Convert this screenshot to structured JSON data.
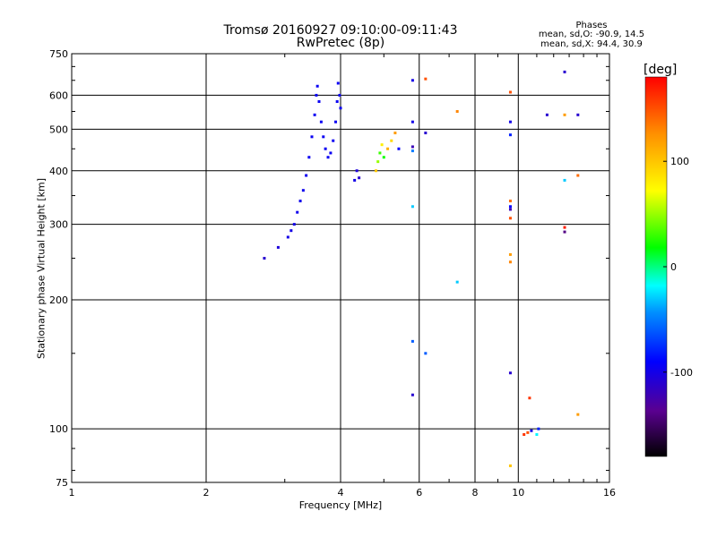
{
  "header": {
    "title": "Tromsø 20160927 09:10:00-09:11:43",
    "subtitle": "RwPretec (8p)",
    "phases_title": "Phases",
    "phases_o": "mean, sd,O: -90.9, 14.5",
    "phases_x": "mean, sd,X:  94.4, 30.9"
  },
  "chart_data": {
    "type": "scatter",
    "title": "Tromsø 20160927 09:10:00-09:11:43",
    "subtitle": "RwPretec (8p)",
    "xlabel": "Frequency [MHz]",
    "ylabel": "Stationary phase Virtual Height [km]",
    "x_scale": "log",
    "y_scale": "log",
    "xlim": [
      1,
      16
    ],
    "ylim": [
      75,
      750
    ],
    "x_ticks": [
      1,
      2,
      4,
      6,
      8,
      10,
      16
    ],
    "x_tick_labels": [
      "1",
      "2",
      "4",
      "6",
      "8",
      "10",
      "16"
    ],
    "y_ticks": [
      75,
      100,
      200,
      300,
      400,
      500,
      600,
      750
    ],
    "y_tick_labels": [
      "75",
      "100",
      "200",
      "300",
      "400",
      "500",
      "600",
      "750"
    ],
    "grid": true,
    "colorbar": {
      "label": "[deg]",
      "range": [
        -180,
        180
      ],
      "ticks": [
        100,
        0,
        -100
      ],
      "tick_labels": [
        "100",
        "0",
        "-100"
      ]
    },
    "points": [
      {
        "x": 2.7,
        "y": 250,
        "phase": -110
      },
      {
        "x": 2.9,
        "y": 265,
        "phase": -105
      },
      {
        "x": 3.05,
        "y": 280,
        "phase": -100
      },
      {
        "x": 3.1,
        "y": 290,
        "phase": -100
      },
      {
        "x": 3.15,
        "y": 300,
        "phase": -100
      },
      {
        "x": 3.2,
        "y": 320,
        "phase": -98
      },
      {
        "x": 3.25,
        "y": 340,
        "phase": -98
      },
      {
        "x": 3.3,
        "y": 360,
        "phase": -97
      },
      {
        "x": 3.35,
        "y": 390,
        "phase": -96
      },
      {
        "x": 3.4,
        "y": 430,
        "phase": -95
      },
      {
        "x": 3.45,
        "y": 480,
        "phase": -95
      },
      {
        "x": 3.5,
        "y": 540,
        "phase": -95
      },
      {
        "x": 3.53,
        "y": 600,
        "phase": -95
      },
      {
        "x": 3.55,
        "y": 630,
        "phase": -95
      },
      {
        "x": 3.58,
        "y": 580,
        "phase": -95
      },
      {
        "x": 3.62,
        "y": 520,
        "phase": -95
      },
      {
        "x": 3.66,
        "y": 480,
        "phase": -95
      },
      {
        "x": 3.7,
        "y": 450,
        "phase": -95
      },
      {
        "x": 3.75,
        "y": 430,
        "phase": -95
      },
      {
        "x": 3.8,
        "y": 440,
        "phase": -95
      },
      {
        "x": 3.85,
        "y": 470,
        "phase": -95
      },
      {
        "x": 3.9,
        "y": 520,
        "phase": -95
      },
      {
        "x": 3.93,
        "y": 580,
        "phase": -95
      },
      {
        "x": 3.95,
        "y": 640,
        "phase": -95
      },
      {
        "x": 3.98,
        "y": 600,
        "phase": -95
      },
      {
        "x": 4.0,
        "y": 560,
        "phase": -95
      },
      {
        "x": 4.3,
        "y": 380,
        "phase": -100
      },
      {
        "x": 4.35,
        "y": 400,
        "phase": -105
      },
      {
        "x": 4.4,
        "y": 385,
        "phase": -110
      },
      {
        "x": 4.8,
        "y": 400,
        "phase": 100
      },
      {
        "x": 4.85,
        "y": 420,
        "phase": 50
      },
      {
        "x": 4.9,
        "y": 440,
        "phase": 30
      },
      {
        "x": 4.95,
        "y": 460,
        "phase": 80
      },
      {
        "x": 5.0,
        "y": 430,
        "phase": 20
      },
      {
        "x": 5.1,
        "y": 450,
        "phase": 110
      },
      {
        "x": 5.2,
        "y": 470,
        "phase": 90
      },
      {
        "x": 5.3,
        "y": 490,
        "phase": 120
      },
      {
        "x": 5.4,
        "y": 450,
        "phase": -90
      },
      {
        "x": 5.8,
        "y": 650,
        "phase": -100
      },
      {
        "x": 6.2,
        "y": 655,
        "phase": 150
      },
      {
        "x": 5.8,
        "y": 520,
        "phase": -100
      },
      {
        "x": 6.2,
        "y": 490,
        "phase": -110
      },
      {
        "x": 5.8,
        "y": 455,
        "phase": -120
      },
      {
        "x": 5.8,
        "y": 445,
        "phase": -50
      },
      {
        "x": 5.8,
        "y": 330,
        "phase": -30
      },
      {
        "x": 5.8,
        "y": 160,
        "phase": -60
      },
      {
        "x": 6.2,
        "y": 150,
        "phase": -60
      },
      {
        "x": 5.8,
        "y": 120,
        "phase": -110
      },
      {
        "x": 7.3,
        "y": 550,
        "phase": 130
      },
      {
        "x": 7.3,
        "y": 220,
        "phase": -30
      },
      {
        "x": 9.6,
        "y": 610,
        "phase": 150
      },
      {
        "x": 9.6,
        "y": 520,
        "phase": -100
      },
      {
        "x": 9.6,
        "y": 485,
        "phase": -80
      },
      {
        "x": 9.6,
        "y": 340,
        "phase": 140
      },
      {
        "x": 9.6,
        "y": 330,
        "phase": -90
      },
      {
        "x": 9.6,
        "y": 325,
        "phase": -120
      },
      {
        "x": 9.6,
        "y": 310,
        "phase": 150
      },
      {
        "x": 9.6,
        "y": 255,
        "phase": 120
      },
      {
        "x": 9.6,
        "y": 245,
        "phase": 130
      },
      {
        "x": 9.6,
        "y": 135,
        "phase": -110
      },
      {
        "x": 9.6,
        "y": 82,
        "phase": 100
      },
      {
        "x": 10.6,
        "y": 118,
        "phase": 160
      },
      {
        "x": 10.3,
        "y": 97,
        "phase": 160
      },
      {
        "x": 10.5,
        "y": 98,
        "phase": 150
      },
      {
        "x": 10.7,
        "y": 99,
        "phase": -100
      },
      {
        "x": 11.0,
        "y": 97,
        "phase": -20
      },
      {
        "x": 11.1,
        "y": 100,
        "phase": -80
      },
      {
        "x": 11.6,
        "y": 540,
        "phase": -110
      },
      {
        "x": 12.7,
        "y": 680,
        "phase": -110
      },
      {
        "x": 12.7,
        "y": 540,
        "phase": 120
      },
      {
        "x": 12.7,
        "y": 380,
        "phase": -30
      },
      {
        "x": 12.7,
        "y": 295,
        "phase": 170
      },
      {
        "x": 12.7,
        "y": 288,
        "phase": -140
      },
      {
        "x": 13.6,
        "y": 540,
        "phase": -110
      },
      {
        "x": 13.6,
        "y": 390,
        "phase": 140
      },
      {
        "x": 13.6,
        "y": 108,
        "phase": 120
      }
    ]
  }
}
